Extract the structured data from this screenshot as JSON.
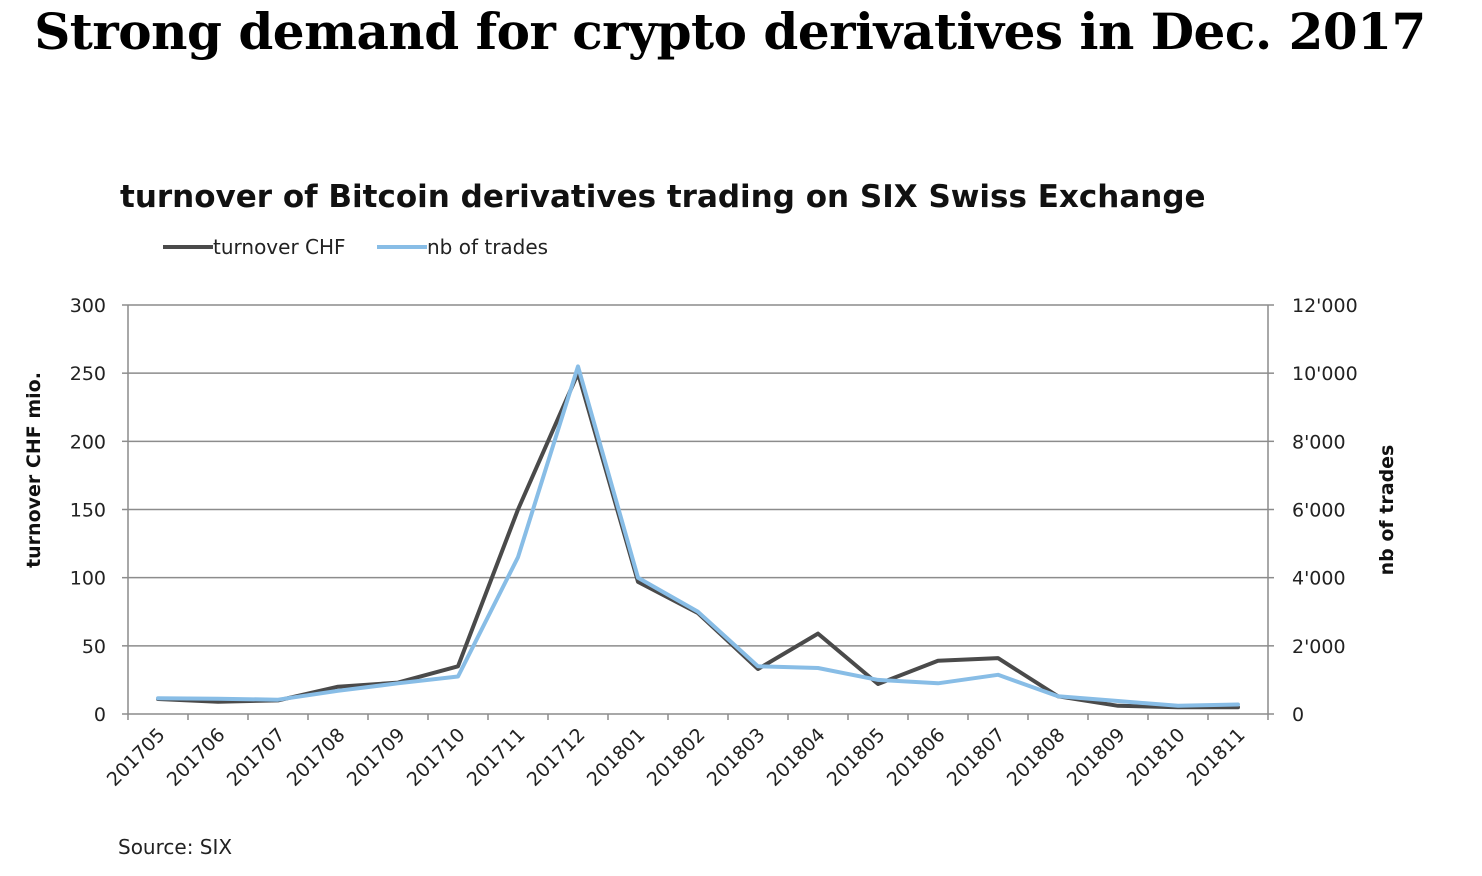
{
  "page": {
    "title": "Strong demand for crypto derivatives in Dec. 2017",
    "source": "Source: SIX"
  },
  "chart_data": {
    "type": "line",
    "title": "turnover of Bitcoin derivatives trading on SIX Swiss Exchange",
    "categories": [
      "201705",
      "201706",
      "201707",
      "201708",
      "201709",
      "201710",
      "201711",
      "201712",
      "201801",
      "201802",
      "201803",
      "201804",
      "201805",
      "201806",
      "201807",
      "201808",
      "201809",
      "201810",
      "201811"
    ],
    "series": [
      {
        "name": "turnover CHF",
        "axis": "left",
        "color": "#4a4a4a",
        "values": [
          11,
          9,
          10,
          20,
          23,
          35,
          150,
          250,
          97,
          74,
          33,
          59,
          22,
          39,
          41,
          13,
          6,
          5,
          5
        ]
      },
      {
        "name": "nb of trades",
        "axis": "right",
        "color": "#88bde6",
        "values": [
          460,
          450,
          420,
          680,
          900,
          1100,
          4600,
          10200,
          4000,
          3000,
          1400,
          1350,
          1000,
          900,
          1150,
          520,
          380,
          240,
          280
        ]
      }
    ],
    "y_left": {
      "label": "turnover CHF mio.",
      "lim": [
        0,
        300
      ],
      "ticks": [
        0,
        50,
        100,
        150,
        200,
        250,
        300
      ],
      "tick_labels": [
        "0",
        "50",
        "100",
        "150",
        "200",
        "250",
        "300"
      ]
    },
    "y_right": {
      "label": "nb of trades",
      "lim": [
        0,
        12000
      ],
      "ticks": [
        0,
        2000,
        4000,
        6000,
        8000,
        10000,
        12000
      ],
      "tick_labels": [
        "0",
        "2'000",
        "4'000",
        "6'000",
        "8'000",
        "10'000",
        "12'000"
      ]
    },
    "grid": true,
    "legend_position": "top-left"
  }
}
